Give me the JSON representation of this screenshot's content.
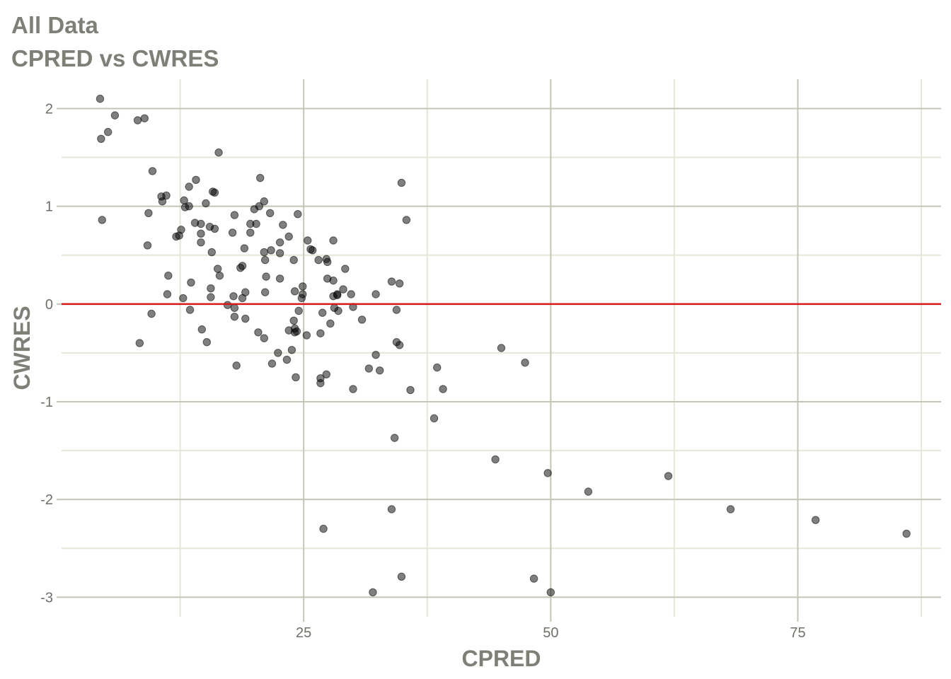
{
  "title_line1": "All Data",
  "title_line2": "CPRED vs CWRES",
  "colors": {
    "grid_major": "#c4c4b7",
    "grid_minor": "#e6e6d9",
    "point_fill": "#000000",
    "point_opacity": 0.5,
    "reference_line": "#d7191c",
    "text": "#7f7f77"
  },
  "chart_data": {
    "type": "scatter",
    "title": "All Data",
    "subtitle": "CPRED vs CWRES",
    "xlabel": "CPRED",
    "ylabel": "CWRES",
    "xlim": [
      0.5,
      89.5
    ],
    "ylim": [
      -3.2,
      2.3
    ],
    "x_ticks": [
      25,
      50,
      75
    ],
    "x_minor_ticks": [
      12.5,
      37.5,
      62.5,
      87.5
    ],
    "y_ticks": [
      -3,
      -2,
      -1,
      0,
      1,
      2
    ],
    "y_minor_ticks": [
      -2.5,
      -1.5,
      -0.5,
      0.5,
      1.5
    ],
    "grid": true,
    "legend": "none",
    "reference_line": {
      "y": 0
    },
    "points": [
      [
        4.4,
        2.1
      ],
      [
        5.2,
        1.76
      ],
      [
        5.9,
        1.93
      ],
      [
        8.2,
        1.88
      ],
      [
        8.9,
        1.9
      ],
      [
        4.5,
        1.69
      ],
      [
        4.6,
        0.86
      ],
      [
        8.4,
        -0.4
      ],
      [
        9.6,
        -0.1
      ],
      [
        9.2,
        0.6
      ],
      [
        9.3,
        0.93
      ],
      [
        9.7,
        1.36
      ],
      [
        10.6,
        1.1
      ],
      [
        10.7,
        1.05
      ],
      [
        11.1,
        1.11
      ],
      [
        11.3,
        0.29
      ],
      [
        11.2,
        0.1
      ],
      [
        12.1,
        0.69
      ],
      [
        12.4,
        0.7
      ],
      [
        12.6,
        0.76
      ],
      [
        12.8,
        0.06
      ],
      [
        13.0,
        0.99
      ],
      [
        12.9,
        1.06
      ],
      [
        13.4,
        1.2
      ],
      [
        13.4,
        1.0
      ],
      [
        13.6,
        0.22
      ],
      [
        13.5,
        -0.06
      ],
      [
        14.0,
        0.83
      ],
      [
        14.1,
        1.27
      ],
      [
        14.6,
        0.72
      ],
      [
        14.6,
        0.63
      ],
      [
        14.6,
        0.82
      ],
      [
        14.7,
        -0.26
      ],
      [
        15.2,
        -0.39
      ],
      [
        15.1,
        1.03
      ],
      [
        15.5,
        0.79
      ],
      [
        15.7,
        0.53
      ],
      [
        15.6,
        0.16
      ],
      [
        15.6,
        0.07
      ],
      [
        15.8,
        1.15
      ],
      [
        16.0,
        1.14
      ],
      [
        16.0,
        0.77
      ],
      [
        16.3,
        0.36
      ],
      [
        16.5,
        0.29
      ],
      [
        16.4,
        1.55
      ],
      [
        17.3,
        -0.01
      ],
      [
        17.8,
        0.73
      ],
      [
        18.0,
        0.91
      ],
      [
        17.9,
        0.08
      ],
      [
        18.0,
        -0.13
      ],
      [
        18.0,
        -0.04
      ],
      [
        18.2,
        -0.63
      ],
      [
        18.6,
        0.37
      ],
      [
        18.8,
        0.39
      ],
      [
        18.8,
        0.06
      ],
      [
        19.0,
        0.57
      ],
      [
        19.1,
        0.12
      ],
      [
        19.1,
        -0.15
      ],
      [
        19.6,
        0.82
      ],
      [
        19.6,
        0.73
      ],
      [
        20.0,
        0.97
      ],
      [
        20.2,
        0.82
      ],
      [
        20.4,
        -0.29
      ],
      [
        20.5,
        1.0
      ],
      [
        20.6,
        1.29
      ],
      [
        21.0,
        -0.35
      ],
      [
        21.0,
        1.05
      ],
      [
        21.0,
        0.53
      ],
      [
        21.1,
        0.45
      ],
      [
        21.1,
        0.12
      ],
      [
        21.2,
        0.28
      ],
      [
        21.6,
        0.93
      ],
      [
        21.7,
        0.55
      ],
      [
        21.8,
        -0.61
      ],
      [
        22.4,
        -0.5
      ],
      [
        22.6,
        0.26
      ],
      [
        22.6,
        0.63
      ],
      [
        22.6,
        0.52
      ],
      [
        22.9,
        0.81
      ],
      [
        23.3,
        -0.57
      ],
      [
        23.5,
        0.69
      ],
      [
        23.5,
        -0.27
      ],
      [
        23.8,
        -0.47
      ],
      [
        24.0,
        0.45
      ],
      [
        24.0,
        -0.17
      ],
      [
        24.1,
        0.13
      ],
      [
        24.1,
        -0.25
      ],
      [
        24.1,
        -0.29
      ],
      [
        24.2,
        -0.75
      ],
      [
        24.3,
        -0.28
      ],
      [
        24.4,
        0.92
      ],
      [
        24.5,
        -0.07
      ],
      [
        24.8,
        0.06
      ],
      [
        24.9,
        0.18
      ],
      [
        24.9,
        0.1
      ],
      [
        25.3,
        -0.32
      ],
      [
        25.4,
        0.65
      ],
      [
        25.7,
        0.56
      ],
      [
        25.9,
        0.55
      ],
      [
        26.5,
        0.45
      ],
      [
        26.7,
        -0.3
      ],
      [
        26.7,
        -0.76
      ],
      [
        26.7,
        -0.81
      ],
      [
        26.9,
        -0.09
      ],
      [
        27.0,
        -2.3
      ],
      [
        27.3,
        -0.72
      ],
      [
        27.3,
        0.46
      ],
      [
        27.4,
        0.43
      ],
      [
        27.4,
        0.26
      ],
      [
        27.7,
        -0.2
      ],
      [
        28.0,
        0.65
      ],
      [
        28.0,
        0.24
      ],
      [
        28.1,
        -0.04
      ],
      [
        28.0,
        0.08
      ],
      [
        28.4,
        0.1
      ],
      [
        28.4,
        0.09
      ],
      [
        28.5,
        -0.07
      ],
      [
        29.0,
        0.15
      ],
      [
        29.2,
        0.36
      ],
      [
        29.8,
        0.1
      ],
      [
        30.0,
        -0.03
      ],
      [
        30.0,
        -0.87
      ],
      [
        30.9,
        -0.16
      ],
      [
        31.6,
        -0.66
      ],
      [
        32.0,
        -2.95
      ],
      [
        32.3,
        -0.52
      ],
      [
        32.3,
        0.1
      ],
      [
        32.7,
        -0.68
      ],
      [
        33.9,
        -2.1
      ],
      [
        33.9,
        0.23
      ],
      [
        34.2,
        -1.37
      ],
      [
        34.4,
        -0.39
      ],
      [
        34.4,
        -0.06
      ],
      [
        34.7,
        -0.42
      ],
      [
        34.9,
        -2.79
      ],
      [
        34.7,
        0.21
      ],
      [
        34.9,
        1.24
      ],
      [
        35.4,
        0.86
      ],
      [
        35.8,
        -0.88
      ],
      [
        38.2,
        -1.17
      ],
      [
        38.5,
        -0.65
      ],
      [
        39.1,
        -0.87
      ],
      [
        44.4,
        -1.59
      ],
      [
        45.0,
        -0.45
      ],
      [
        47.4,
        -0.6
      ],
      [
        48.3,
        -2.81
      ],
      [
        49.7,
        -1.73
      ],
      [
        50.0,
        -2.95
      ],
      [
        53.8,
        -1.92
      ],
      [
        61.9,
        -1.76
      ],
      [
        68.2,
        -2.1
      ],
      [
        76.8,
        -2.21
      ],
      [
        86.0,
        -2.35
      ]
    ]
  }
}
